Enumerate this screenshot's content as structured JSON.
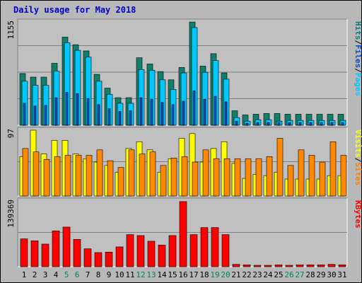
{
  "chart_data": {
    "type": "bar",
    "title": "Daily usage for May 2018",
    "categories": [
      "1",
      "2",
      "3",
      "4",
      "5",
      "6",
      "7",
      "8",
      "9",
      "10",
      "11",
      "12",
      "13",
      "14",
      "15",
      "16",
      "17",
      "18",
      "19",
      "20",
      "21",
      "22",
      "23",
      "24",
      "25",
      "26",
      "27",
      "28",
      "29",
      "30",
      "31"
    ],
    "weekend_days": [
      "5",
      "6",
      "12",
      "13",
      "19",
      "20",
      "26",
      "27"
    ],
    "panels": [
      {
        "name": "pages-files-hits",
        "max_label": "1155",
        "ylim": [
          0,
          1155
        ],
        "legend": [
          {
            "text": "Pages",
            "color": "#00c8ff"
          },
          {
            "text": "Files",
            "color": "#0050c8"
          },
          {
            "text": "Hits",
            "color": "#008080"
          }
        ],
        "series": [
          {
            "name": "Hits",
            "color": "#10806a",
            "values": [
              578,
              538,
              538,
              692,
              985,
              900,
              831,
              569,
              415,
              308,
              308,
              754,
              685,
              600,
              508,
              646,
              1154,
              662,
              800,
              585,
              162,
              115,
              123,
              131,
              131,
              123,
              123,
              123,
              123,
              123,
              123
            ]
          },
          {
            "name": "Files",
            "color": "#00c8ff",
            "values": [
              492,
              446,
              446,
              604,
              923,
              838,
              762,
              492,
              346,
              246,
              246,
              623,
              615,
              508,
              400,
              585,
              1092,
              592,
              723,
              515,
              85,
              46,
              62,
              62,
              46,
              54,
              54,
              54,
              54,
              54,
              54
            ]
          },
          {
            "name": "Pages",
            "color": "#0050c8",
            "values": [
              246,
              215,
              223,
              308,
              369,
              354,
              300,
              231,
              185,
              154,
              162,
              308,
              292,
              254,
              231,
              269,
              385,
              292,
              323,
              262,
              46,
              23,
              31,
              31,
              31,
              31,
              31,
              31,
              31,
              31,
              31
            ]
          }
        ]
      },
      {
        "name": "visits-sites",
        "max_label": "97",
        "ylim": [
          0,
          97
        ],
        "legend": [
          {
            "text": "Sites",
            "color": "#ff8000"
          },
          {
            "text": "Visits",
            "color": "#ffff00"
          }
        ],
        "series": [
          {
            "name": "Visits",
            "color": "#ffff00",
            "values": [
              58,
              97,
              62,
              82,
              82,
              62,
              55,
              50,
              45,
              35,
              70,
              80,
              68,
              35,
              55,
              85,
              92,
              50,
              70,
              80,
              48,
              26,
              32,
              30,
              35,
              25,
              25,
              25,
              25,
              30,
              30
            ]
          },
          {
            "name": "Sites",
            "color": "#ff8a00",
            "values": [
              70,
              65,
              54,
              58,
              60,
              60,
              60,
              68,
              52,
              42,
              68,
              62,
              65,
              45,
              56,
              58,
              50,
              68,
              55,
              55,
              55,
              55,
              55,
              58,
              85,
              45,
              68,
              60,
              50,
              80,
              60
            ]
          }
        ]
      },
      {
        "name": "kbytes",
        "max_label": "139369",
        "ylim": [
          0,
          139369
        ],
        "legend": [
          {
            "text": "KBytes",
            "color": "#ff0000"
          }
        ],
        "series": [
          {
            "name": "KBytes",
            "color": "#ff0000",
            "values": [
              59000,
              55000,
              48000,
              76000,
              84000,
              58000,
              38000,
              30000,
              31000,
              42000,
              68000,
              66000,
              54000,
              46000,
              66000,
              138000,
              68000,
              83000,
              83000,
              68000,
              5000,
              4000,
              3000,
              3000,
              4000,
              3000,
              4000,
              4000,
              4000,
              5000,
              4000
            ]
          }
        ]
      }
    ]
  }
}
